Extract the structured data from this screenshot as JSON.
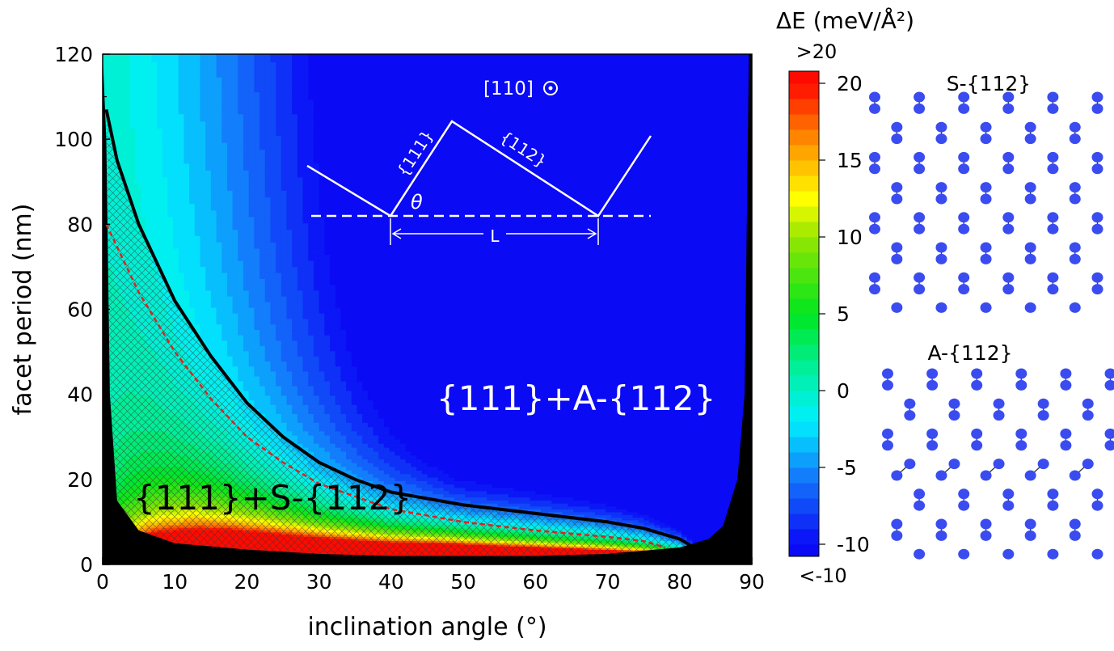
{
  "chart_data": {
    "type": "heatmap",
    "title": "",
    "xlabel": "inclination angle (°)",
    "ylabel": "facet period (nm)",
    "xlim": [
      0,
      90
    ],
    "ylim": [
      0,
      120
    ],
    "xticks": [
      "0",
      "10",
      "20",
      "30",
      "40",
      "50",
      "60",
      "70",
      "80",
      "90"
    ],
    "yticks": [
      "0",
      "20",
      "40",
      "60",
      "80",
      "100",
      "120"
    ],
    "colorbar": {
      "label": "ΔE (meV/Å²)",
      "range": [
        -10,
        20
      ],
      "ticks": [
        "20",
        "15",
        "10",
        "5",
        "0",
        "-5",
        "-10"
      ],
      "over_label": ">20",
      "under_label": "<-10",
      "levels": 30
    },
    "boundary_curve_solid_black": {
      "x": [
        0.5,
        2,
        5,
        10,
        15,
        20,
        25,
        30,
        35,
        40,
        50,
        60,
        70,
        75,
        80,
        82
      ],
      "y": [
        107,
        95,
        80,
        62,
        49,
        38,
        30,
        24,
        20,
        17,
        14,
        12,
        10,
        8.5,
        6,
        4
      ]
    },
    "boundary_curve_dashed_red": {
      "x": [
        0.5,
        5,
        10,
        15,
        20,
        25,
        30,
        40,
        50,
        60,
        70,
        75,
        78
      ],
      "y": [
        80,
        64,
        50,
        39,
        30,
        24,
        19,
        13,
        10,
        8,
        6.5,
        5.5,
        4
      ]
    },
    "black_region_lower_edge": {
      "x": [
        0,
        0.5,
        1,
        2,
        5,
        10,
        20,
        30,
        40,
        60,
        70,
        80,
        84,
        86,
        88,
        89,
        89.6
      ],
      "y": [
        120,
        100,
        40,
        15,
        8,
        5,
        3.5,
        2.5,
        2,
        2,
        2.5,
        4,
        6,
        9,
        20,
        40,
        120
      ]
    },
    "region_labels": [
      "{111}+S-{112}",
      "{111}+A-{112}"
    ]
  },
  "annotations": {
    "region_s": "{111}+S-{112}",
    "region_a": "{111}+A-{112}",
    "direction": "[110]",
    "facet_111": "{111}",
    "facet_112": "{112}",
    "theta": "θ",
    "period": "L"
  },
  "structures": {
    "s_title": "S-{112}",
    "a_title": "A-{112}",
    "atom_color": "#3a4cf0"
  }
}
